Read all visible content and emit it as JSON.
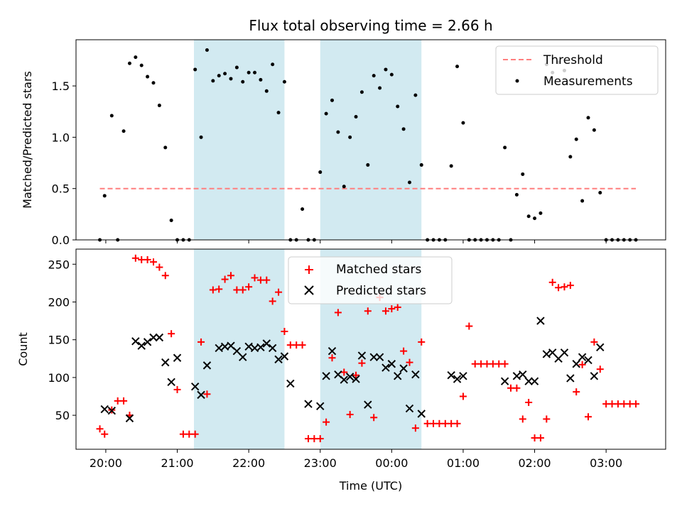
{
  "title": "Flux total observing time = 2.66 h",
  "colors": {
    "shade": "#add8e6",
    "threshold": "#ff7f7f",
    "measurement": "#000000",
    "matched": "#ff0000",
    "predicted": "#000000"
  },
  "chart_data": [
    {
      "type": "scatter",
      "ylabel": "Matched/Predicted stars",
      "ylim": [
        0,
        1.95
      ],
      "yticks": [
        0,
        0.5,
        1.0,
        1.5
      ],
      "ytick_labels": [
        "0.0",
        "0.5",
        "1.0",
        "1.5"
      ],
      "shaded_intervals": [
        [
          "21:14",
          "22:30"
        ],
        [
          "23:00",
          "00:25"
        ]
      ],
      "threshold": {
        "value": 0.5,
        "x_start": "19:55",
        "x_end": "03:25"
      },
      "legend": {
        "position": "top-right",
        "entries": [
          "Threshold",
          "Measurements"
        ]
      },
      "series": [
        {
          "name": "Measurements",
          "points": [
            [
              "19:55",
              0
            ],
            [
              "19:59",
              0.43
            ],
            [
              "20:05",
              1.21
            ],
            [
              "20:10",
              0
            ],
            [
              "20:15",
              1.06
            ],
            [
              "20:20",
              1.72
            ],
            [
              "20:25",
              1.78
            ],
            [
              "20:30",
              1.7
            ],
            [
              "20:35",
              1.59
            ],
            [
              "20:40",
              1.53
            ],
            [
              "20:45",
              1.31
            ],
            [
              "20:50",
              0.9
            ],
            [
              "20:55",
              0.19
            ],
            [
              "21:00",
              0
            ],
            [
              "21:05",
              0
            ],
            [
              "21:10",
              0
            ],
            [
              "21:15",
              1.66
            ],
            [
              "21:20",
              1.0
            ],
            [
              "21:25",
              1.85
            ],
            [
              "21:30",
              1.55
            ],
            [
              "21:35",
              1.6
            ],
            [
              "21:40",
              1.62
            ],
            [
              "21:45",
              1.57
            ],
            [
              "21:50",
              1.68
            ],
            [
              "21:55",
              1.54
            ],
            [
              "22:00",
              1.63
            ],
            [
              "22:05",
              1.63
            ],
            [
              "22:10",
              1.56
            ],
            [
              "22:15",
              1.45
            ],
            [
              "22:20",
              1.71
            ],
            [
              "22:25",
              1.24
            ],
            [
              "22:30",
              1.54
            ],
            [
              "22:35",
              0
            ],
            [
              "22:40",
              0
            ],
            [
              "22:45",
              0.3
            ],
            [
              "22:50",
              0
            ],
            [
              "22:55",
              0
            ],
            [
              "23:00",
              0.66
            ],
            [
              "23:05",
              1.23
            ],
            [
              "23:10",
              1.36
            ],
            [
              "23:15",
              1.05
            ],
            [
              "23:20",
              0.52
            ],
            [
              "23:25",
              1.0
            ],
            [
              "23:30",
              1.2
            ],
            [
              "23:35",
              1.44
            ],
            [
              "23:40",
              0.73
            ],
            [
              "23:45",
              1.6
            ],
            [
              "23:50",
              1.48
            ],
            [
              "23:55",
              1.66
            ],
            [
              "00:00",
              1.61
            ],
            [
              "00:05",
              1.3
            ],
            [
              "00:10",
              1.08
            ],
            [
              "00:15",
              0.56
            ],
            [
              "00:20",
              1.41
            ],
            [
              "00:25",
              0.73
            ],
            [
              "00:30",
              0
            ],
            [
              "00:35",
              0
            ],
            [
              "00:40",
              0
            ],
            [
              "00:45",
              0
            ],
            [
              "00:50",
              0.72
            ],
            [
              "00:55",
              1.69
            ],
            [
              "01:00",
              1.14
            ],
            [
              "01:05",
              0
            ],
            [
              "01:10",
              0
            ],
            [
              "01:15",
              0
            ],
            [
              "01:20",
              0
            ],
            [
              "01:25",
              0
            ],
            [
              "01:30",
              0
            ],
            [
              "01:35",
              0.9
            ],
            [
              "01:40",
              0
            ],
            [
              "01:45",
              0.44
            ],
            [
              "01:50",
              0.64
            ],
            [
              "01:55",
              0.23
            ],
            [
              "02:00",
              0.21
            ],
            [
              "02:05",
              0.26
            ],
            [
              "02:10",
              1.71
            ],
            [
              "02:15",
              1.63
            ],
            [
              "02:20",
              1.73
            ],
            [
              "02:25",
              1.65
            ],
            [
              "02:30",
              0.81
            ],
            [
              "02:35",
              0.98
            ],
            [
              "02:40",
              0.38
            ],
            [
              "02:45",
              1.19
            ],
            [
              "02:50",
              1.07
            ],
            [
              "02:55",
              0.46
            ],
            [
              "03:00",
              0
            ],
            [
              "03:05",
              0
            ],
            [
              "03:10",
              0
            ],
            [
              "03:15",
              0
            ],
            [
              "03:20",
              0
            ],
            [
              "03:25",
              0
            ]
          ]
        }
      ]
    },
    {
      "type": "scatter",
      "xlabel": "Time (UTC)",
      "ylabel": "Count",
      "ylim": [
        5,
        270
      ],
      "yticks": [
        50,
        100,
        150,
        200,
        250
      ],
      "ytick_labels": [
        "50",
        "100",
        "150",
        "200",
        "250"
      ],
      "x_range": [
        "19:35",
        "03:50"
      ],
      "xticks": [
        "20:00",
        "21:00",
        "22:00",
        "23:00",
        "00:00",
        "01:00",
        "02:00",
        "03:00"
      ],
      "shaded_intervals": [
        [
          "21:14",
          "22:30"
        ],
        [
          "23:00",
          "00:25"
        ]
      ],
      "legend": {
        "position": "top-center",
        "entries": [
          "Matched stars",
          "Predicted stars"
        ]
      },
      "series": [
        {
          "name": "Matched stars",
          "marker": "plus",
          "points": [
            [
              "19:55",
              32
            ],
            [
              "19:59",
              25
            ],
            [
              "20:05",
              57
            ],
            [
              "20:10",
              69
            ],
            [
              "20:15",
              69
            ],
            [
              "20:20",
              50
            ],
            [
              "20:25",
              258
            ],
            [
              "20:30",
              256
            ],
            [
              "20:35",
              256
            ],
            [
              "20:40",
              253
            ],
            [
              "20:45",
              246
            ],
            [
              "20:50",
              235
            ],
            [
              "20:55",
              158
            ],
            [
              "21:00",
              84
            ],
            [
              "21:05",
              25
            ],
            [
              "21:10",
              25
            ],
            [
              "21:15",
              25
            ],
            [
              "21:20",
              147
            ],
            [
              "21:25",
              78
            ],
            [
              "21:30",
              216
            ],
            [
              "21:35",
              217
            ],
            [
              "21:40",
              230
            ],
            [
              "21:45",
              235
            ],
            [
              "21:50",
              216
            ],
            [
              "21:55",
              216
            ],
            [
              "22:00",
              220
            ],
            [
              "22:05",
              232
            ],
            [
              "22:10",
              229
            ],
            [
              "22:15",
              229
            ],
            [
              "22:20",
              201
            ],
            [
              "22:25",
              213
            ],
            [
              "22:30",
              161
            ],
            [
              "22:35",
              143
            ],
            [
              "22:40",
              143
            ],
            [
              "22:45",
              143
            ],
            [
              "22:50",
              19
            ],
            [
              "22:55",
              19
            ],
            [
              "23:00",
              19
            ],
            [
              "23:05",
              41
            ],
            [
              "23:10",
              126
            ],
            [
              "23:15",
              186
            ],
            [
              "23:20",
              107
            ],
            [
              "23:25",
              51
            ],
            [
              "23:30",
              103
            ],
            [
              "23:35",
              119
            ],
            [
              "23:40",
              188
            ],
            [
              "23:45",
              47
            ],
            [
              "23:50",
              206
            ],
            [
              "23:55",
              188
            ],
            [
              "00:00",
              191
            ],
            [
              "00:05",
              193
            ],
            [
              "00:10",
              135
            ],
            [
              "00:15",
              120
            ],
            [
              "00:20",
              33
            ],
            [
              "00:25",
              147
            ],
            [
              "00:30",
              39
            ],
            [
              "00:35",
              39
            ],
            [
              "00:40",
              39
            ],
            [
              "00:45",
              39
            ],
            [
              "00:50",
              39
            ],
            [
              "00:55",
              39
            ],
            [
              "01:00",
              75
            ],
            [
              "01:05",
              168
            ],
            [
              "01:10",
              118
            ],
            [
              "01:15",
              118
            ],
            [
              "01:20",
              118
            ],
            [
              "01:25",
              118
            ],
            [
              "01:30",
              118
            ],
            [
              "01:35",
              118
            ],
            [
              "01:40",
              86
            ],
            [
              "01:45",
              86
            ],
            [
              "01:50",
              45
            ],
            [
              "01:55",
              67
            ],
            [
              "02:00",
              20
            ],
            [
              "02:05",
              20
            ],
            [
              "02:10",
              45
            ],
            [
              "02:15",
              226
            ],
            [
              "02:20",
              219
            ],
            [
              "02:25",
              220
            ],
            [
              "02:30",
              222
            ],
            [
              "02:35",
              81
            ],
            [
              "02:40",
              117
            ],
            [
              "02:45",
              48
            ],
            [
              "02:50",
              147
            ],
            [
              "02:55",
              111
            ],
            [
              "03:00",
              65
            ],
            [
              "03:05",
              65
            ],
            [
              "03:10",
              65
            ],
            [
              "03:15",
              65
            ],
            [
              "03:20",
              65
            ],
            [
              "03:25",
              65
            ]
          ]
        },
        {
          "name": "Predicted stars",
          "marker": "x",
          "points": [
            [
              "19:59",
              58
            ],
            [
              "20:05",
              56
            ],
            [
              "20:20",
              46
            ],
            [
              "20:25",
              148
            ],
            [
              "20:30",
              142
            ],
            [
              "20:35",
              147
            ],
            [
              "20:40",
              153
            ],
            [
              "20:45",
              153
            ],
            [
              "20:50",
              120
            ],
            [
              "20:55",
              94
            ],
            [
              "21:00",
              126
            ],
            [
              "21:15",
              88
            ],
            [
              "21:20",
              77
            ],
            [
              "21:25",
              116
            ],
            [
              "21:35",
              139
            ],
            [
              "21:40",
              141
            ],
            [
              "21:45",
              142
            ],
            [
              "21:50",
              135
            ],
            [
              "21:55",
              127
            ],
            [
              "22:00",
              141
            ],
            [
              "22:05",
              139
            ],
            [
              "22:10",
              140
            ],
            [
              "22:15",
              145
            ],
            [
              "22:20",
              139
            ],
            [
              "22:25",
              124
            ],
            [
              "22:30",
              128
            ],
            [
              "22:35",
              92
            ],
            [
              "22:50",
              65
            ],
            [
              "23:00",
              62
            ],
            [
              "23:05",
              102
            ],
            [
              "23:10",
              135
            ],
            [
              "23:15",
              104
            ],
            [
              "23:20",
              97
            ],
            [
              "23:25",
              101
            ],
            [
              "23:30",
              98
            ],
            [
              "23:35",
              129
            ],
            [
              "23:40",
              64
            ],
            [
              "23:45",
              127
            ],
            [
              "23:50",
              127
            ],
            [
              "23:55",
              113
            ],
            [
              "00:00",
              118
            ],
            [
              "00:05",
              102
            ],
            [
              "00:10",
              112
            ],
            [
              "00:15",
              59
            ],
            [
              "00:20",
              104
            ],
            [
              "00:25",
              52
            ],
            [
              "00:50",
              103
            ],
            [
              "00:55",
              98
            ],
            [
              "01:00",
              102
            ],
            [
              "01:35",
              95
            ],
            [
              "01:45",
              102
            ],
            [
              "01:50",
              104
            ],
            [
              "01:55",
              95
            ],
            [
              "02:00",
              95
            ],
            [
              "02:05",
              175
            ],
            [
              "02:10",
              131
            ],
            [
              "02:15",
              133
            ],
            [
              "02:20",
              125
            ],
            [
              "02:25",
              133
            ],
            [
              "02:30",
              99
            ],
            [
              "02:35",
              118
            ],
            [
              "02:40",
              127
            ],
            [
              "02:45",
              123
            ],
            [
              "02:50",
              102
            ],
            [
              "02:55",
              140
            ]
          ]
        }
      ]
    }
  ]
}
